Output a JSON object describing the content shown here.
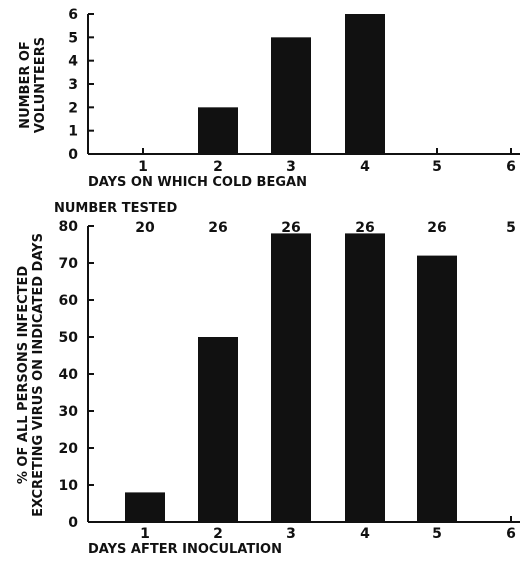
{
  "chart_data": [
    {
      "type": "bar",
      "title": "",
      "ylabel_lines": [
        "NUMBER OF",
        "VOLUNTEERS"
      ],
      "xlabel": "DAYS ON WHICH COLD BEGAN",
      "categories": [
        "1",
        "2",
        "3",
        "4",
        "5",
        "6"
      ],
      "values": [
        0,
        2,
        5,
        6,
        0,
        0
      ],
      "yticks": [
        "0",
        "1",
        "2",
        "3",
        "4",
        "5",
        "6"
      ],
      "ylim": [
        0,
        6
      ],
      "bar_color": "#111111"
    },
    {
      "type": "bar",
      "title": "",
      "ylabel_lines": [
        "% OF ALL PERSONS INFECTED",
        "EXCRETING VIRUS ON INDICATED DAYS"
      ],
      "xlabel": "DAYS AFTER INOCULATION",
      "categories": [
        "1",
        "2",
        "3",
        "4",
        "5",
        "6"
      ],
      "values": [
        8,
        50,
        78,
        78,
        72,
        0
      ],
      "yticks": [
        "0",
        "10",
        "20",
        "30",
        "40",
        "50",
        "60",
        "70",
        "80"
      ],
      "ylim": [
        0,
        80
      ],
      "number_tested_label": "NUMBER TESTED",
      "number_tested": [
        "20",
        "26",
        "26",
        "26",
        "26",
        "5"
      ],
      "bar_color": "#111111"
    }
  ]
}
